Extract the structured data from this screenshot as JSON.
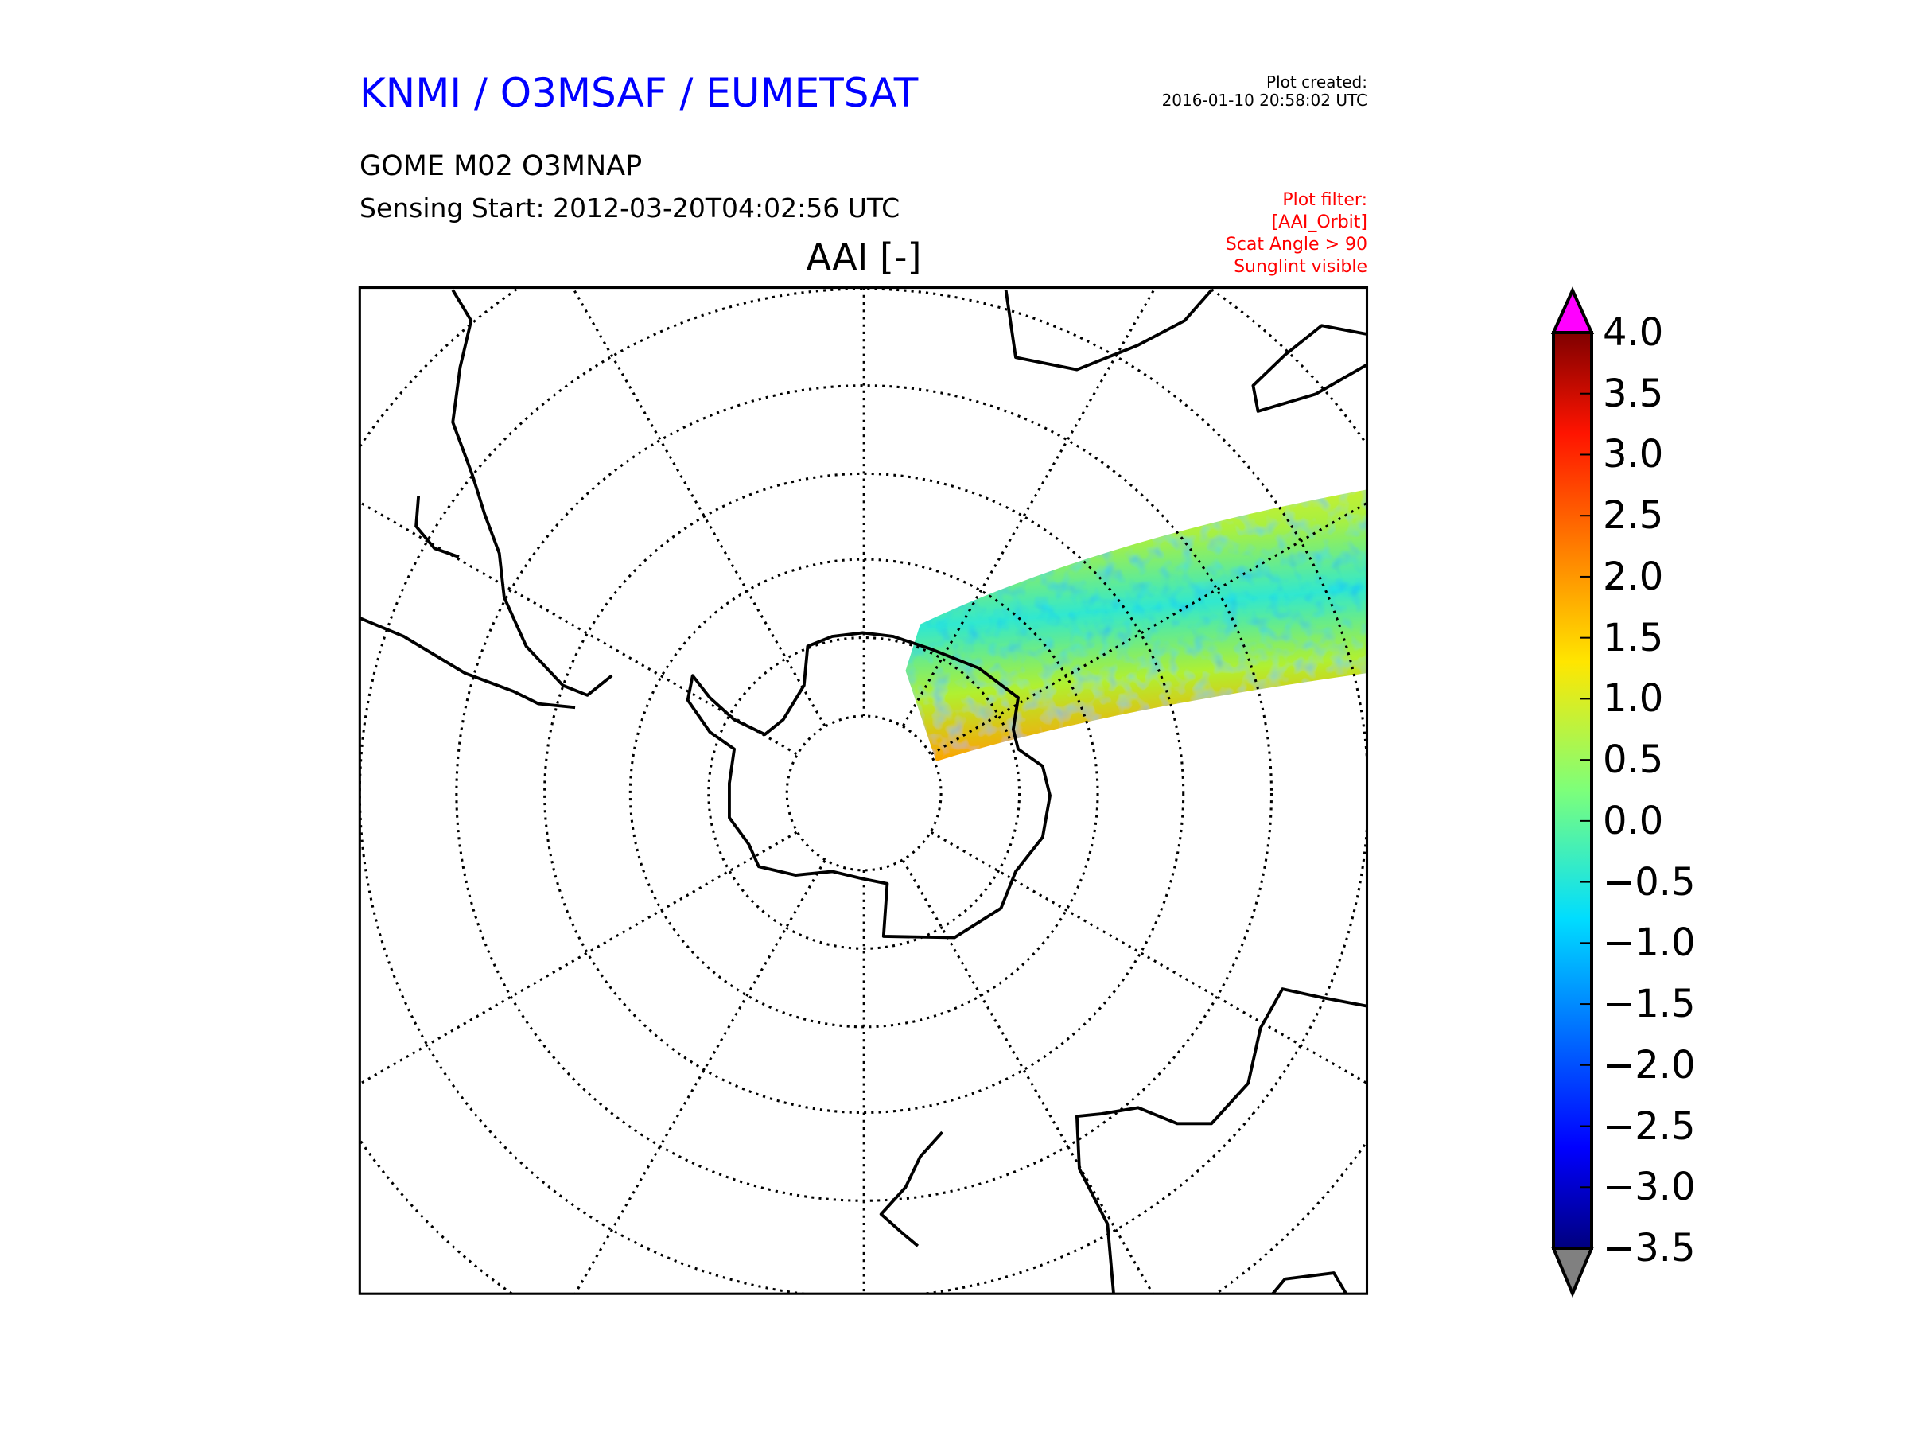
{
  "header": {
    "title": "KNMI / O3MSAF / EUMETSAT",
    "plot_created_label": "Plot created:",
    "plot_created_value": "2016-01-10 20:58:02 UTC",
    "product": "GOME M02 O3MNAP",
    "sensing_start": "Sensing Start: 2012-03-20T04:02:56 UTC",
    "filter": [
      "Plot filter:",
      "[AAI_Orbit]",
      "Scat Angle > 90",
      "Sunglint visible"
    ]
  },
  "map": {
    "title": "AAI [-]",
    "projection": "south-polar-stereographic",
    "colors": {
      "swath_low": "#00e5ff",
      "swath_mid": "#c8f02a",
      "swath_high": "#ff6a00",
      "coast": "#000000"
    }
  },
  "colorbar": {
    "min": -3.5,
    "max": 4.0,
    "ticks": [
      "4.0",
      "3.5",
      "3.0",
      "2.5",
      "2.0",
      "1.5",
      "1.0",
      "0.5",
      "0.0",
      "−0.5",
      "−1.0",
      "−1.5",
      "−2.0",
      "−2.5",
      "−3.0",
      "−3.5"
    ],
    "over_color": "#ff00ff",
    "under_color": "#808080"
  }
}
